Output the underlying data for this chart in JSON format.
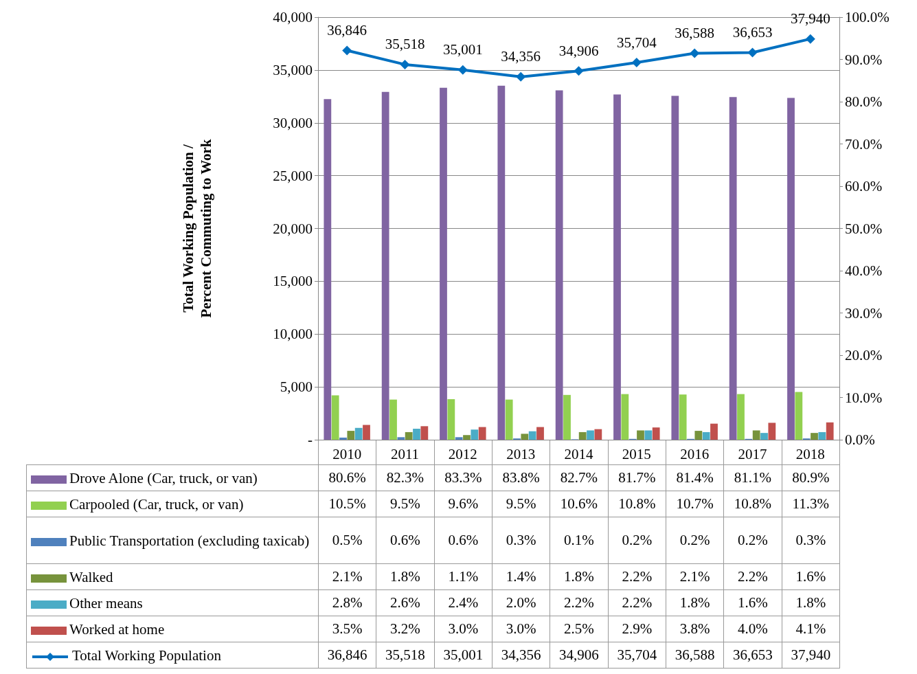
{
  "chart_data": {
    "type": "bar",
    "ylabel": "Total Working Population /\nPercent Commuting to Work",
    "categories": [
      "2010",
      "2011",
      "2012",
      "2013",
      "2014",
      "2015",
      "2016",
      "2017",
      "2018"
    ],
    "series": [
      {
        "name": "Drove Alone (Car, truck, or van)",
        "color": "#8064a2",
        "axis": "y2",
        "values": [
          80.6,
          82.3,
          83.3,
          83.8,
          82.7,
          81.7,
          81.4,
          81.1,
          80.9
        ],
        "value_labels": [
          "80.6%",
          "82.3%",
          "83.3%",
          "83.8%",
          "82.7%",
          "81.7%",
          "81.4%",
          "81.1%",
          "80.9%"
        ]
      },
      {
        "name": "Carpooled (Car, truck, or van)",
        "color": "#92d050",
        "axis": "y2",
        "values": [
          10.5,
          9.5,
          9.6,
          9.5,
          10.6,
          10.8,
          10.7,
          10.8,
          11.3
        ],
        "value_labels": [
          "10.5%",
          "9.5%",
          "9.6%",
          "9.5%",
          "10.6%",
          "10.8%",
          "10.7%",
          "10.8%",
          "11.3%"
        ]
      },
      {
        "name": "Public Transportation (excluding taxicab)",
        "color": "#4f81bd",
        "axis": "y2",
        "values": [
          0.5,
          0.6,
          0.6,
          0.3,
          0.1,
          0.2,
          0.2,
          0.2,
          0.3
        ],
        "value_labels": [
          "0.5%",
          "0.6%",
          "0.6%",
          "0.3%",
          "0.1%",
          "0.2%",
          "0.2%",
          "0.2%",
          "0.3%"
        ]
      },
      {
        "name": "Walked",
        "color": "#77933c",
        "axis": "y2",
        "values": [
          2.1,
          1.8,
          1.1,
          1.4,
          1.8,
          2.2,
          2.1,
          2.2,
          1.6
        ],
        "value_labels": [
          "2.1%",
          "1.8%",
          "1.1%",
          "1.4%",
          "1.8%",
          "2.2%",
          "2.1%",
          "2.2%",
          "1.6%"
        ]
      },
      {
        "name": "Other means",
        "color": "#4bacc6",
        "axis": "y2",
        "values": [
          2.8,
          2.6,
          2.4,
          2.0,
          2.2,
          2.2,
          1.8,
          1.6,
          1.8
        ],
        "value_labels": [
          "2.8%",
          "2.6%",
          "2.4%",
          "2.0%",
          "2.2%",
          "2.2%",
          "1.8%",
          "1.6%",
          "1.8%"
        ]
      },
      {
        "name": "Worked at home",
        "color": "#c0504d",
        "axis": "y2",
        "values": [
          3.5,
          3.2,
          3.0,
          3.0,
          2.5,
          2.9,
          3.8,
          4.0,
          4.1
        ],
        "value_labels": [
          "3.5%",
          "3.2%",
          "3.0%",
          "3.0%",
          "2.5%",
          "2.9%",
          "3.8%",
          "4.0%",
          "4.1%"
        ]
      },
      {
        "name": "Total Working Population",
        "type": "line",
        "color": "#0070c0",
        "axis": "y",
        "marker": "diamond",
        "values": [
          36846,
          35518,
          35001,
          34356,
          34906,
          35704,
          36588,
          36653,
          37940
        ],
        "value_labels": [
          "36,846",
          "35,518",
          "35,001",
          "34,356",
          "34,906",
          "35,704",
          "36,588",
          "36,653",
          "37,940"
        ]
      }
    ],
    "ylim": [
      0,
      40000
    ],
    "yticks": [
      {
        "value": 0,
        "label": "-"
      },
      {
        "value": 5000,
        "label": "5,000"
      },
      {
        "value": 10000,
        "label": "10,000"
      },
      {
        "value": 15000,
        "label": "15,000"
      },
      {
        "value": 20000,
        "label": "20,000"
      },
      {
        "value": 25000,
        "label": "25,000"
      },
      {
        "value": 30000,
        "label": "30,000"
      },
      {
        "value": 35000,
        "label": "35,000"
      },
      {
        "value": 40000,
        "label": "40,000"
      }
    ],
    "y2lim": [
      0,
      100
    ],
    "y2ticks": [
      {
        "value": 0,
        "label": "0.0%"
      },
      {
        "value": 10,
        "label": "10.0%"
      },
      {
        "value": 20,
        "label": "20.0%"
      },
      {
        "value": 30,
        "label": "30.0%"
      },
      {
        "value": 40,
        "label": "40.0%"
      },
      {
        "value": 50,
        "label": "50.0%"
      },
      {
        "value": 60,
        "label": "60.0%"
      },
      {
        "value": 70,
        "label": "70.0%"
      },
      {
        "value": 80,
        "label": "80.0%"
      },
      {
        "value": 90,
        "label": "90.0%"
      },
      {
        "value": 100,
        "label": "100.0%"
      }
    ],
    "grid": "y",
    "legend": "bottom"
  }
}
